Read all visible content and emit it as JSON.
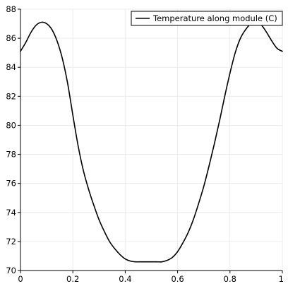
{
  "chart_data": {
    "type": "line",
    "grid": true,
    "legend_position": "top-right",
    "xlim": [
      0,
      1
    ],
    "ylim": [
      70,
      88
    ],
    "x_ticks": [
      0,
      0.2,
      0.4,
      0.6,
      0.8,
      1
    ],
    "x_tick_labels": [
      "0",
      "0.2",
      "0.4",
      "0.6",
      "0.8",
      "1"
    ],
    "y_ticks": [
      70,
      72,
      74,
      76,
      78,
      80,
      82,
      84,
      86,
      88
    ],
    "y_tick_labels": [
      "70",
      "72",
      "74",
      "76",
      "78",
      "80",
      "82",
      "84",
      "86",
      "88"
    ],
    "series": [
      {
        "name": "Temperature along module (C)",
        "color": "#000000",
        "x": [
          0,
          0.02,
          0.04,
          0.06,
          0.08,
          0.1,
          0.12,
          0.14,
          0.16,
          0.18,
          0.2,
          0.22,
          0.24,
          0.26,
          0.28,
          0.3,
          0.32,
          0.34,
          0.36,
          0.38,
          0.4,
          0.42,
          0.44,
          0.46,
          0.48,
          0.5,
          0.52,
          0.54,
          0.56,
          0.58,
          0.6,
          0.62,
          0.64,
          0.66,
          0.68,
          0.7,
          0.72,
          0.74,
          0.76,
          0.78,
          0.8,
          0.82,
          0.84,
          0.86,
          0.88,
          0.9,
          0.92,
          0.94,
          0.96,
          0.98,
          1
        ],
        "y": [
          85.1,
          85.7,
          86.4,
          86.9,
          87.1,
          87.0,
          86.6,
          85.8,
          84.6,
          82.9,
          80.7,
          78.6,
          76.9,
          75.6,
          74.5,
          73.5,
          72.7,
          72.0,
          71.5,
          71.1,
          70.8,
          70.65,
          70.6,
          70.6,
          70.6,
          70.6,
          70.6,
          70.6,
          70.7,
          70.9,
          71.3,
          71.9,
          72.6,
          73.5,
          74.6,
          75.8,
          77.2,
          78.7,
          80.3,
          82.0,
          83.6,
          85.0,
          86.0,
          86.6,
          87.0,
          87.1,
          86.9,
          86.4,
          85.8,
          85.3,
          85.1
        ]
      }
    ]
  }
}
